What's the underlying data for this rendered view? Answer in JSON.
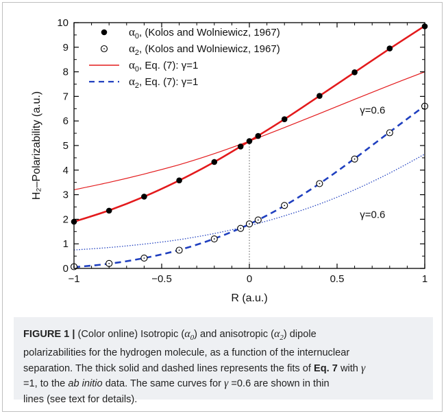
{
  "chart_data": {
    "type": "scatter",
    "xlabel": "R (a.u.)",
    "ylabel": "H₂–Polarizability (a.u.)",
    "xlim": [
      -1,
      1
    ],
    "ylim": [
      0,
      10
    ],
    "xticks": [
      "−1",
      "−0.5",
      "0",
      "0.5",
      "1"
    ],
    "yticks": [
      "0",
      "1",
      "2",
      "3",
      "4",
      "5",
      "6",
      "7",
      "8",
      "9",
      "10"
    ],
    "legend_position": "top-left",
    "series": [
      {
        "name": "α0, (Kolos and Wolniewicz, 1967)",
        "style": "filled-circle",
        "color": "#000000",
        "x": [
          -1,
          -0.8,
          -0.6,
          -0.4,
          -0.2,
          -0.05,
          0,
          0.05,
          0.2,
          0.4,
          0.6,
          0.8,
          1
        ],
        "y": [
          1.9,
          2.35,
          2.92,
          3.58,
          4.33,
          4.96,
          5.18,
          5.39,
          6.07,
          7.02,
          7.98,
          8.95,
          9.85
        ]
      },
      {
        "name": "α2, (Kolos and Wolniewicz, 1967)",
        "style": "open-circle",
        "color": "#000000",
        "x": [
          -1,
          -0.8,
          -0.6,
          -0.4,
          -0.2,
          -0.05,
          0,
          0.05,
          0.2,
          0.4,
          0.6,
          0.8,
          1
        ],
        "y": [
          0.07,
          0.2,
          0.42,
          0.74,
          1.2,
          1.63,
          1.81,
          1.97,
          2.56,
          3.45,
          4.45,
          5.52,
          6.6
        ]
      },
      {
        "name": "α0, Eq. (7): γ=1",
        "style": "solid-thick",
        "color": "#e31a1c",
        "x": [
          -1,
          -0.8,
          -0.6,
          -0.4,
          -0.2,
          0,
          0.2,
          0.4,
          0.6,
          0.8,
          1
        ],
        "y": [
          1.9,
          2.36,
          2.92,
          3.58,
          4.33,
          5.18,
          6.07,
          7.02,
          7.98,
          8.94,
          9.87
        ]
      },
      {
        "name": "α2, Eq. (7): γ=1",
        "style": "dashed-thick",
        "color": "#1f3fbf",
        "x": [
          -1,
          -0.8,
          -0.6,
          -0.4,
          -0.2,
          0,
          0.2,
          0.4,
          0.6,
          0.8,
          1
        ],
        "y": [
          0.05,
          0.19,
          0.42,
          0.75,
          1.21,
          1.8,
          2.55,
          3.45,
          4.47,
          5.55,
          6.62
        ]
      },
      {
        "name": "",
        "style": "solid-thin",
        "color": "#e31a1c",
        "x": [
          -1,
          -0.8,
          -0.6,
          -0.4,
          -0.2,
          0,
          0.2,
          0.4,
          0.6,
          0.8,
          1
        ],
        "y": [
          3.2,
          3.5,
          3.84,
          4.22,
          4.67,
          5.18,
          5.73,
          6.3,
          6.88,
          7.45,
          8.0
        ]
      },
      {
        "name": "",
        "style": "dotted-thin",
        "color": "#1f3fbf",
        "x": [
          -1,
          -0.8,
          -0.6,
          -0.4,
          -0.2,
          0,
          0.2,
          0.4,
          0.6,
          0.8,
          1
        ],
        "y": [
          0.75,
          0.85,
          0.99,
          1.17,
          1.42,
          1.74,
          2.14,
          2.62,
          3.2,
          3.88,
          4.65
        ]
      }
    ],
    "annotations": [
      {
        "text": "γ=0.6",
        "x": 0.63,
        "y": 6.3
      },
      {
        "text": "γ=0.6",
        "x": 0.63,
        "y": 2.05
      }
    ],
    "reference_line": {
      "x": 0,
      "style": "dotted",
      "y_from": 0,
      "y_to": 5.18
    }
  },
  "caption": {
    "figure_label": "FIGURE 1 |",
    "line1_pre": " (Color online) Isotropic (",
    "line1_a0": "α",
    "line1_a0_sub": "0",
    "line1_mid": ") and anisotropic (",
    "line1_a2": "α",
    "line1_a2_sub": "2",
    "line1_post": ") dipole",
    "line2": "polarizabilities for the hydrogen molecule, as a function of the internuclear",
    "line3_pre": "separation. The thick solid and dashed lines represents the fits of ",
    "line3_eq": "Eq. 7",
    "line3_post": " with ",
    "line3_gamma": "γ",
    "line4_pre": "=1, to the ",
    "line4_italic": "ab initio",
    "line4_mid": " data. The same curves for ",
    "line4_gamma": "γ",
    "line4_post": " =0.6 are shown in thin",
    "line5": "lines (see text for details)."
  }
}
